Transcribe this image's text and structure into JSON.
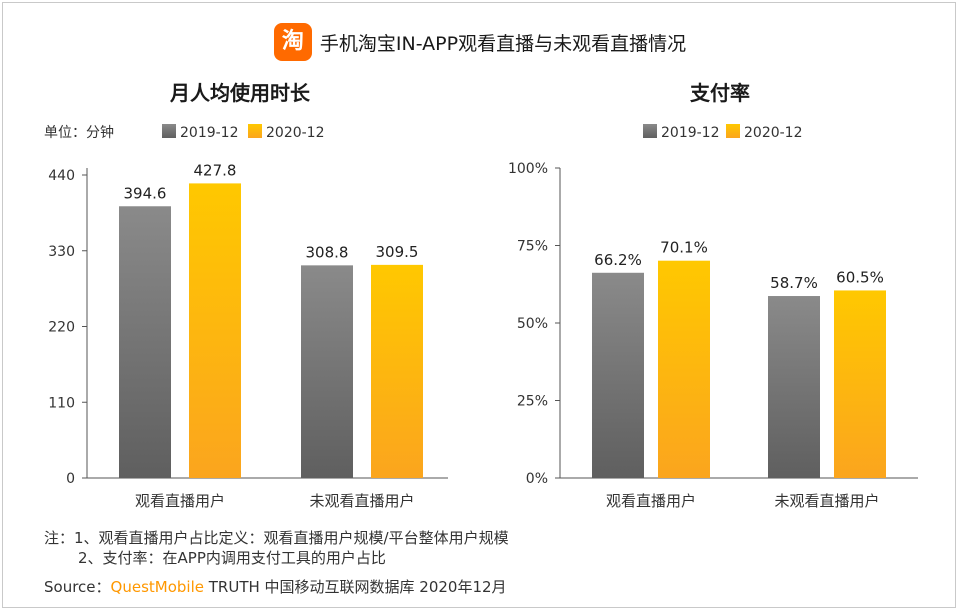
{
  "header": {
    "logo_char": "淘",
    "title": "手机淘宝IN-APP观看直播与未观看直播情况"
  },
  "colors": {
    "series_2019": "#7a7a7a",
    "series_2020": "#ffbe00",
    "accent": "#ff6a00"
  },
  "chart_data": [
    {
      "type": "bar",
      "title": "月人均使用时长",
      "unit_label": "单位：分钟",
      "categories": [
        "观看直播用户",
        "未观看直播用户"
      ],
      "series": [
        {
          "name": "2019-12",
          "values": [
            394.6,
            308.8
          ],
          "labels": [
            "394.6",
            "308.8"
          ]
        },
        {
          "name": "2020-12",
          "values": [
            427.8,
            309.5
          ],
          "labels": [
            "427.8",
            "309.5"
          ]
        }
      ],
      "yticks": [
        "0",
        "110",
        "220",
        "330",
        "440"
      ],
      "ylim": [
        0,
        440
      ],
      "legend": "top-left",
      "grid": false
    },
    {
      "type": "bar",
      "title": "支付率",
      "categories": [
        "观看直播用户",
        "未观看直播用户"
      ],
      "series": [
        {
          "name": "2019-12",
          "values": [
            66.2,
            58.7
          ],
          "labels": [
            "66.2%",
            "58.7%"
          ]
        },
        {
          "name": "2020-12",
          "values": [
            70.1,
            60.5
          ],
          "labels": [
            "70.1%",
            "60.5%"
          ]
        }
      ],
      "yticks": [
        "0%",
        "25%",
        "50%",
        "75%",
        "100%"
      ],
      "ylim": [
        0,
        100
      ],
      "legend": "top-center",
      "grid": false
    }
  ],
  "notes": {
    "line1": "注：1、观看直播用户占比定义：观看直播用户规模/平台整体用户规模",
    "line2": "2、支付率：在APP内调用支付工具的用户占比"
  },
  "source": {
    "prefix": "Source：",
    "brand": "QuestMobile",
    "suffix": " TRUTH 中国移动互联网数据库 2020年12月"
  }
}
